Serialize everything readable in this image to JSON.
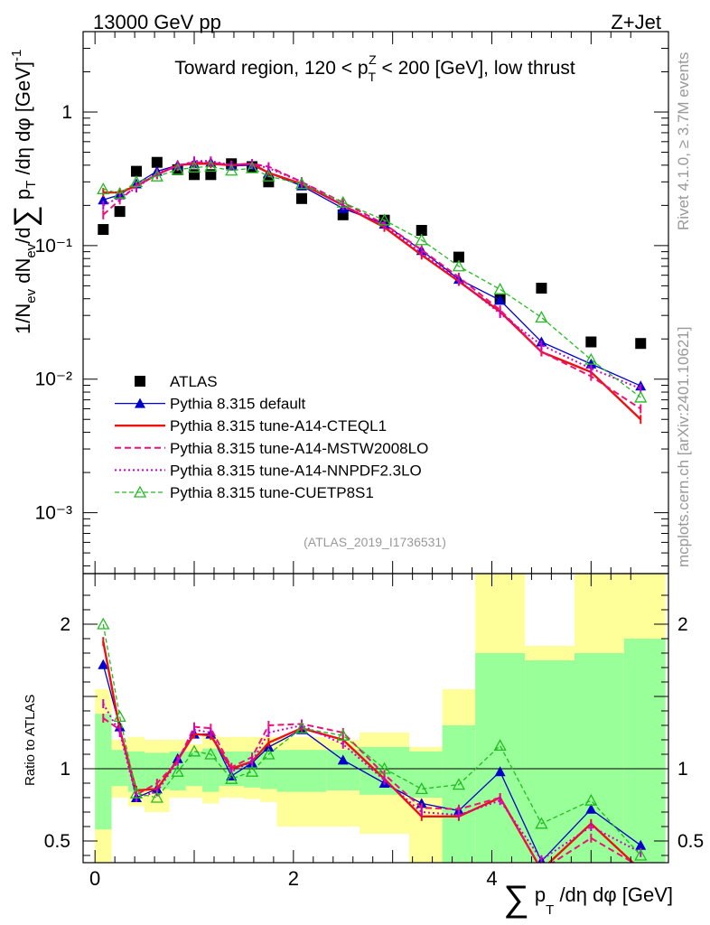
{
  "header": {
    "left": "13000 GeV pp",
    "right": "Z+Jet"
  },
  "side": {
    "rivet": "Rivet 4.1.0, ≥ 3.7M events",
    "mcplots": "mcplots.cern.ch [arXiv:2401.10621]"
  },
  "chart_data": [
    {
      "type": "scatter",
      "title": "Toward region, 120 < pTZ < 200 [GeV], low thrust",
      "analysis_label": "(ATLAS_2019_I1736531)",
      "ylabel": "1/Nev dNev/d∑ pT/dη dφ [GeV]⁻¹",
      "xlabel": "∑ pT/dη dφ [GeV]",
      "yscale": "log",
      "xlim": [
        -0.12,
        5.78
      ],
      "ylim": [
        0.00035,
        4.0
      ],
      "y_tick_labels": [
        "1",
        "10⁻¹",
        "10⁻²",
        "10⁻³"
      ],
      "x_tick_labels": [
        "0",
        "2",
        "4"
      ],
      "x": [
        0.083,
        0.25,
        0.417,
        0.625,
        0.833,
        1.0,
        1.167,
        1.375,
        1.583,
        1.75,
        2.083,
        2.5,
        2.917,
        3.292,
        3.667,
        4.083,
        4.5,
        5.0,
        5.5
      ],
      "series": [
        {
          "name": "ATLAS",
          "style": "data",
          "color": "#000000",
          "values": [
            0.132,
            0.18,
            0.36,
            0.42,
            0.37,
            0.34,
            0.34,
            0.41,
            0.39,
            0.3,
            0.225,
            0.17,
            0.155,
            0.13,
            0.082,
            0.04,
            0.048,
            0.019,
            0.0185
          ]
        },
        {
          "name": "Pythia 8.315 default",
          "style": "triangle",
          "color": "#0000cc",
          "values": [
            0.22,
            0.24,
            0.29,
            0.36,
            0.4,
            0.41,
            0.42,
            0.395,
            0.4,
            0.35,
            0.28,
            0.19,
            0.145,
            0.092,
            0.056,
            0.039,
            0.019,
            0.013,
            0.0089
          ]
        },
        {
          "name": "Pythia 8.315 tune-A14-CTEQL1",
          "style": "thick",
          "color": "#ee1111",
          "values": [
            0.25,
            0.25,
            0.28,
            0.34,
            0.4,
            0.41,
            0.41,
            0.4,
            0.41,
            0.35,
            0.29,
            0.2,
            0.137,
            0.085,
            0.054,
            0.032,
            0.016,
            0.0113,
            0.005
          ]
        },
        {
          "name": "Pythia 8.315 tune-A14-MSTW2008LO",
          "style": "dashed",
          "color": "#ee1177",
          "values": [
            0.17,
            0.22,
            0.28,
            0.34,
            0.4,
            0.42,
            0.42,
            0.4,
            0.41,
            0.39,
            0.3,
            0.21,
            0.145,
            0.093,
            0.058,
            0.033,
            0.016,
            0.0105,
            0.006
          ]
        },
        {
          "name": "Pythia 8.315 tune-A14-NNPDF2.3LO",
          "style": "dotted",
          "color": "#cc00cc",
          "values": [
            0.2,
            0.23,
            0.27,
            0.35,
            0.39,
            0.43,
            0.43,
            0.4,
            0.41,
            0.38,
            0.3,
            0.2,
            0.142,
            0.088,
            0.055,
            0.031,
            0.018,
            0.012,
            0.0085
          ]
        },
        {
          "name": "Pythia 8.315 tune-CUETP8S1",
          "style": "open-triangle",
          "color": "#22bb22",
          "values": [
            0.265,
            0.245,
            0.3,
            0.33,
            0.37,
            0.385,
            0.39,
            0.365,
            0.38,
            0.33,
            0.29,
            0.21,
            0.155,
            0.11,
            0.07,
            0.047,
            0.029,
            0.014,
            0.0073
          ]
        }
      ]
    },
    {
      "type": "line",
      "title": "",
      "ylabel": "Ratio to ATLAS",
      "xlim": [
        -0.12,
        5.78
      ],
      "ylim": [
        0.35,
        2.35
      ],
      "y_tick_labels": [
        "0.5",
        "1",
        "2"
      ],
      "bands": {
        "x_edges": [
          0.0,
          0.167,
          0.333,
          0.5,
          0.75,
          0.917,
          1.083,
          1.25,
          1.5,
          1.667,
          1.833,
          2.333,
          2.667,
          3.167,
          3.5,
          3.833,
          4.333,
          4.833,
          5.333,
          5.75
        ],
        "yellow_low": [
          0.35,
          0.8,
          0.74,
          0.7,
          0.8,
          0.8,
          0.76,
          0.8,
          0.79,
          0.77,
          0.6,
          0.6,
          0.55,
          0.35,
          0.35,
          0.35,
          0.35,
          0.35,
          0.35
        ],
        "yellow_high": [
          1.55,
          1.2,
          1.22,
          1.2,
          1.2,
          1.17,
          1.23,
          1.22,
          1.22,
          1.22,
          1.22,
          1.2,
          1.25,
          1.15,
          1.55,
          2.35,
          1.85,
          2.35,
          2.35
        ],
        "green_low": [
          0.58,
          0.88,
          0.84,
          0.86,
          0.85,
          0.88,
          0.84,
          0.88,
          0.87,
          0.86,
          0.84,
          0.85,
          0.82,
          0.8,
          0.35,
          0.35,
          0.35,
          0.35,
          0.35
        ],
        "green_high": [
          1.38,
          1.13,
          1.12,
          1.11,
          1.12,
          1.12,
          1.14,
          1.12,
          1.12,
          1.13,
          1.13,
          1.13,
          1.15,
          1.12,
          1.3,
          1.8,
          1.75,
          1.8,
          1.9
        ]
      },
      "x": [
        0.083,
        0.25,
        0.417,
        0.625,
        0.833,
        1.0,
        1.167,
        1.375,
        1.583,
        1.75,
        2.083,
        2.5,
        2.917,
        3.292,
        3.667,
        4.083,
        4.5,
        5.0,
        5.5
      ],
      "series": [
        {
          "name": "Pythia 8.315 default",
          "values": [
            1.72,
            1.29,
            0.8,
            0.86,
            1.07,
            1.24,
            1.24,
            0.95,
            1.04,
            1.15,
            1.27,
            1.06,
            0.9,
            0.76,
            0.71,
            0.98,
            0.36,
            0.72,
            0.47
          ]
        },
        {
          "name": "Pythia 8.315 tune-A14-CTEQL1",
          "values": [
            1.88,
            1.27,
            0.85,
            0.86,
            1.06,
            1.24,
            1.23,
            1.0,
            1.05,
            1.18,
            1.28,
            1.2,
            0.93,
            0.67,
            0.67,
            0.8,
            0.3,
            0.62,
            0.3
          ]
        },
        {
          "name": "Pythia 8.315 tune-A14-MSTW2008LO",
          "values": [
            1.35,
            1.27,
            0.82,
            0.9,
            1.05,
            1.29,
            1.28,
            1.01,
            1.08,
            1.3,
            1.31,
            1.25,
            0.96,
            0.73,
            0.72,
            0.8,
            0.3,
            0.52,
            0.32
          ]
        },
        {
          "name": "Pythia 8.315 tune-A14-NNPDF2.3LO",
          "values": [
            1.45,
            1.25,
            0.8,
            0.84,
            1.05,
            1.27,
            1.25,
            0.98,
            1.05,
            1.25,
            1.3,
            1.17,
            0.92,
            0.7,
            0.68,
            0.78,
            0.37,
            0.6,
            0.42
          ]
        },
        {
          "name": "Pythia 8.315 tune-CUETP8S1",
          "values": [
            2.0,
            1.36,
            0.83,
            0.8,
            0.98,
            1.12,
            1.1,
            0.93,
            0.98,
            1.1,
            1.28,
            1.23,
            1.0,
            0.86,
            0.89,
            1.16,
            0.62,
            0.78,
            0.4
          ]
        }
      ]
    }
  ]
}
